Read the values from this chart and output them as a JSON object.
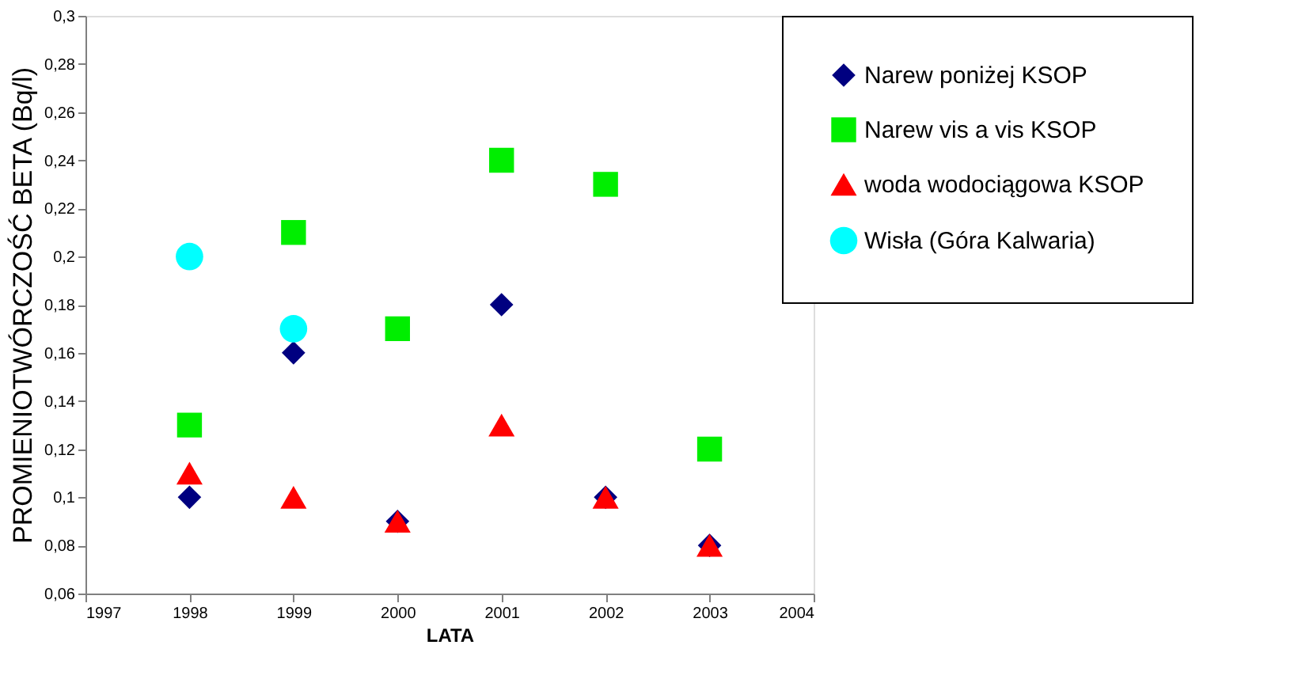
{
  "chart_data": {
    "type": "scatter",
    "xlabel": "LATA",
    "ylabel": "PROMIENIOTWÓRCZOŚĆ BETA (Bq/l)",
    "x": [
      1998,
      1999,
      2000,
      2001,
      2002,
      2003
    ],
    "series": [
      {
        "name": "Narew poniżej KSOP",
        "color": "#000080",
        "marker": "diamond",
        "values": [
          0.1,
          0.16,
          0.09,
          0.18,
          0.1,
          0.08
        ]
      },
      {
        "name": "Narew vis a vis KSOP",
        "color": "#00ee00",
        "marker": "square",
        "values": [
          0.13,
          0.21,
          0.17,
          0.24,
          0.23,
          0.12
        ]
      },
      {
        "name": "woda wodociągowa KSOP",
        "color": "#ff0000",
        "marker": "triangle",
        "values": [
          0.11,
          0.1,
          0.09,
          0.13,
          0.1,
          0.08
        ]
      },
      {
        "name": "Wisła (Góra Kalwaria)",
        "color": "#00ffff",
        "marker": "circle",
        "values": [
          0.2,
          0.17,
          null,
          null,
          null,
          null
        ]
      }
    ],
    "xlim": [
      1997,
      2004
    ],
    "xticks": [
      1997,
      1998,
      1999,
      2000,
      2001,
      2002,
      2003,
      2004
    ],
    "ylim": [
      0.06,
      0.3
    ],
    "yticks": [
      {
        "value": 0.06,
        "label": "0,06"
      },
      {
        "value": 0.08,
        "label": "0,08"
      },
      {
        "value": 0.1,
        "label": "0,1"
      },
      {
        "value": 0.12,
        "label": "0,12"
      },
      {
        "value": 0.14,
        "label": "0,14"
      },
      {
        "value": 0.16,
        "label": "0,16"
      },
      {
        "value": 0.18,
        "label": "0,18"
      },
      {
        "value": 0.2,
        "label": "0,2"
      },
      {
        "value": 0.22,
        "label": "0,22"
      },
      {
        "value": 0.24,
        "label": "0,24"
      },
      {
        "value": 0.26,
        "label": "0,26"
      },
      {
        "value": 0.28,
        "label": "0,28"
      },
      {
        "value": 0.3,
        "label": "0,3"
      }
    ],
    "grid": false,
    "legend": "right"
  }
}
